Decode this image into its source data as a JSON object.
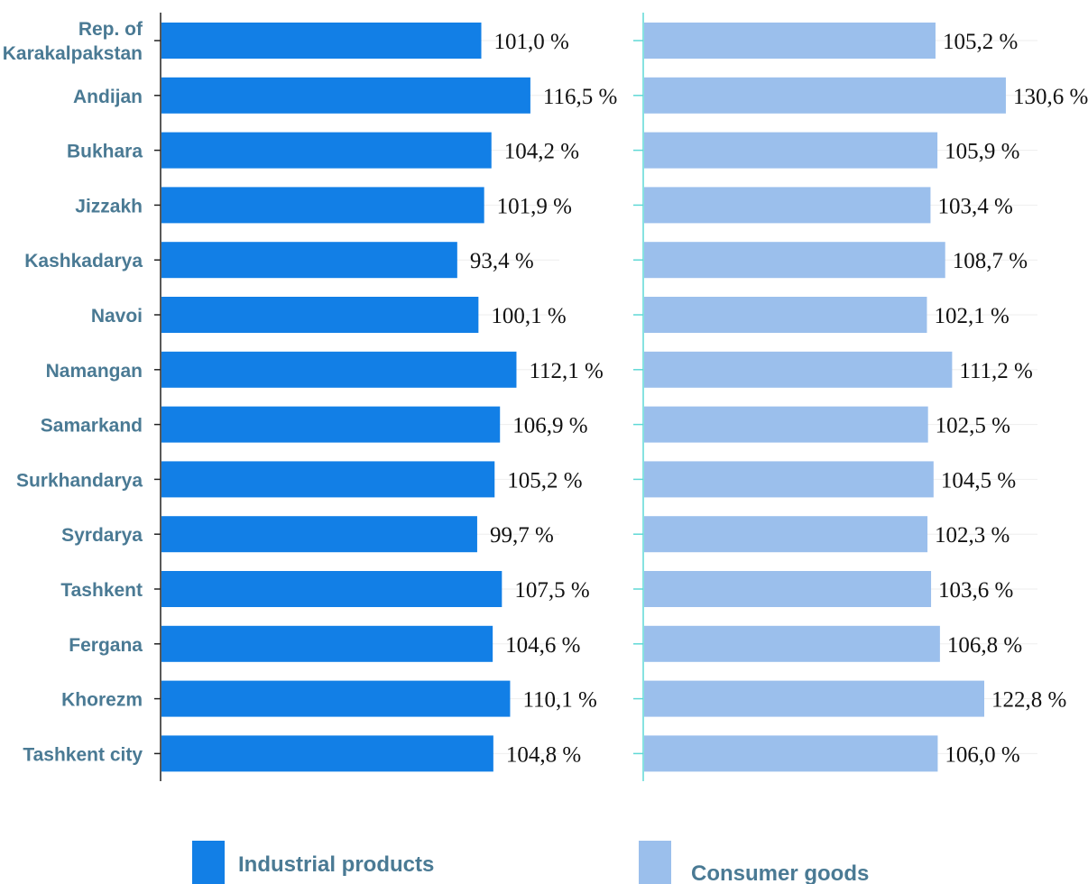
{
  "chart_data": [
    {
      "type": "bar",
      "orientation": "horizontal",
      "categories": [
        "Rep. of Karakalpakstan",
        "Andijan",
        "Bukhara",
        "Jizzakh",
        "Kashkadarya",
        "Navoi",
        "Namangan",
        "Samarkand",
        "Surkhandarya",
        "Syrdarya",
        "Tashkent",
        "Fergana",
        "Khorezm",
        "Tashkent city"
      ],
      "series": [
        {
          "name": "Industrial products",
          "color": "#127fe6",
          "values": [
            101.0,
            116.5,
            104.2,
            101.9,
            93.4,
            100.1,
            112.1,
            106.9,
            105.2,
            99.7,
            107.5,
            104.6,
            110.1,
            104.8
          ],
          "labels": [
            "101,0 %",
            "116,5 %",
            "104,2 %",
            "101,9 %",
            "93,4 %",
            "100,1 %",
            "112,1 %",
            "106,9 %",
            "105,2 %",
            "99,7 %",
            "107,5 %",
            "104,6 %",
            "110,1 %",
            "104,8 %"
          ]
        }
      ]
    },
    {
      "type": "bar",
      "orientation": "horizontal",
      "categories": [
        "Rep. of Karakalpakstan",
        "Andijan",
        "Bukhara",
        "Jizzakh",
        "Kashkadarya",
        "Navoi",
        "Namangan",
        "Samarkand",
        "Surkhandarya",
        "Syrdarya",
        "Tashkent",
        "Fergana",
        "Khorezm",
        "Tashkent city"
      ],
      "series": [
        {
          "name": "Consumer goods",
          "color": "#9bbfec",
          "values": [
            105.2,
            130.6,
            105.9,
            103.4,
            108.7,
            102.1,
            111.2,
            102.5,
            104.5,
            102.3,
            103.6,
            106.8,
            122.8,
            106.0
          ],
          "labels": [
            "105,2 %",
            "130,6 %",
            "105,9 %",
            "103,4 %",
            "108,7 %",
            "102,1 %",
            "111,2 %",
            "102,5 %",
            "104,5 %",
            "102,3 %",
            "103,6 %",
            "106,8 %",
            "122,8 %",
            "106,0 %"
          ]
        }
      ]
    }
  ],
  "category_labels": [
    [
      "Rep. of",
      "Karakalpakstan"
    ],
    [
      "Andijan"
    ],
    [
      "Bukhara"
    ],
    [
      "Jizzakh"
    ],
    [
      "Kashkadarya"
    ],
    [
      "Navoi"
    ],
    [
      "Namangan"
    ],
    [
      "Samarkand"
    ],
    [
      "Surkhandarya"
    ],
    [
      "Syrdarya"
    ],
    [
      "Tashkent"
    ],
    [
      "Fergana"
    ],
    [
      "Khorezm"
    ],
    [
      "Tashkent city"
    ]
  ],
  "legend": {
    "position": "bottom",
    "items": [
      {
        "label": "Industrial products",
        "color": "#127fe6"
      },
      {
        "label": "Consumer goods",
        "color": "#9bbfec"
      }
    ]
  }
}
